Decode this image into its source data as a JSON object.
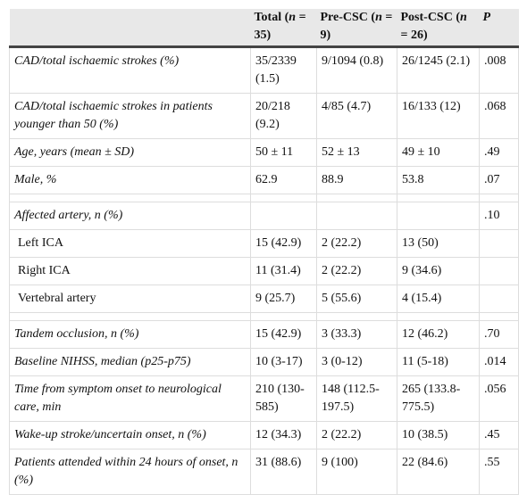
{
  "table": {
    "headers": [
      "",
      "Total (n = 35)",
      "Pre-CSC (n = 9)",
      "Post-CSC (n = 26)",
      "P"
    ],
    "header_parts": [
      {
        "pre": "",
        "n": "",
        "post": ""
      },
      {
        "pre": "Total (",
        "n": "n",
        "post": " = 35)"
      },
      {
        "pre": "Pre-CSC (",
        "n": "n",
        "post": " = 9)"
      },
      {
        "pre": "Post-CSC (",
        "n": "n",
        "post": " = 26)"
      },
      {
        "pre": "",
        "n": "P",
        "post": ""
      }
    ],
    "rows": [
      {
        "label": "CAD/total ischaemic strokes (%)",
        "cells": [
          "35/2339 (1.5)",
          "9/1094 (0.8)",
          "26/1245 (2.1)",
          ".008"
        ]
      },
      {
        "label": "CAD/total ischaemic strokes in patients younger than 50 (%)",
        "cells": [
          "20/218 (9.2)",
          "4/85 (4.7)",
          "16/133 (12)",
          ".068"
        ]
      },
      {
        "label": "Age, years (mean ± SD)",
        "cells": [
          "50 ± 11",
          "52 ± 13",
          "49 ± 10",
          ".49"
        ]
      },
      {
        "label": "Male, %",
        "cells": [
          "62.9",
          "88.9",
          "53.8",
          ".07"
        ]
      },
      {
        "label": "Affected artery, n (%)",
        "cells": [
          "",
          "",
          "",
          ".10"
        ]
      },
      {
        "label": "Left ICA",
        "cells": [
          "15 (42.9)",
          "2 (22.2)",
          "13 (50)",
          ""
        ]
      },
      {
        "label": "Right ICA",
        "cells": [
          "11 (31.4)",
          "2 (22.2)",
          "9 (34.6)",
          ""
        ]
      },
      {
        "label": "Vertebral artery",
        "cells": [
          "9 (25.7)",
          "5 (55.6)",
          "4 (15.4)",
          ""
        ]
      },
      {
        "label": "Tandem occlusion, n (%)",
        "cells": [
          "15 (42.9)",
          "3 (33.3)",
          "12 (46.2)",
          ".70"
        ]
      },
      {
        "label": "Baseline NIHSS, median (p25-p75)",
        "cells": [
          "10 (3-17)",
          "3 (0-12)",
          "11 (5-18)",
          ".014"
        ]
      },
      {
        "label": "Time from symptom onset to neurological care, min",
        "cells": [
          "210 (130-585)",
          "148 (112.5-197.5)",
          "265 (133.8-775.5)",
          ".056"
        ]
      },
      {
        "label": "Wake-up stroke/uncertain onset, n (%)",
        "cells": [
          "12 (34.3)",
          "2 (22.2)",
          "10 (38.5)",
          ".45"
        ]
      },
      {
        "label": "Patients attended within 24 hours of onset, n (%)",
        "cells": [
          "31 (88.6)",
          "9 (100)",
          "22 (84.6)",
          ".55"
        ]
      }
    ]
  }
}
